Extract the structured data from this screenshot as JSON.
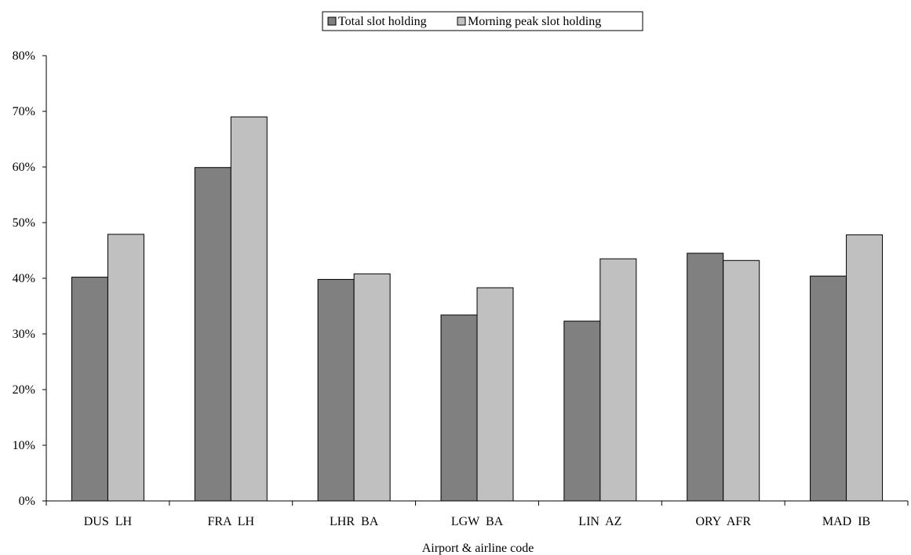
{
  "chart_data": {
    "type": "bar",
    "title": "",
    "xlabel": "Airport & airline code",
    "ylabel": "",
    "categories": [
      "DUS  LH",
      "FRA  LH",
      "LHR  BA",
      "LGW  BA",
      "LIN  AZ",
      "ORY  AFR",
      "MAD  IB"
    ],
    "series": [
      {
        "name": "Total slot holding",
        "color": "#808080",
        "values": [
          40.2,
          59.9,
          39.8,
          33.4,
          32.3,
          44.5,
          40.4
        ]
      },
      {
        "name": "Morning peak slot holding",
        "color": "#c0c0c0",
        "values": [
          47.9,
          69.0,
          40.8,
          38.3,
          43.5,
          43.2,
          47.8
        ]
      }
    ],
    "ylim": [
      0,
      80
    ],
    "yticks": [
      0,
      10,
      20,
      30,
      40,
      50,
      60,
      70,
      80
    ],
    "ytick_labels": [
      "0%",
      "10%",
      "20%",
      "30%",
      "40%",
      "50%",
      "60%",
      "70%",
      "80%"
    ],
    "grid": false,
    "legend_position": "top-center"
  }
}
